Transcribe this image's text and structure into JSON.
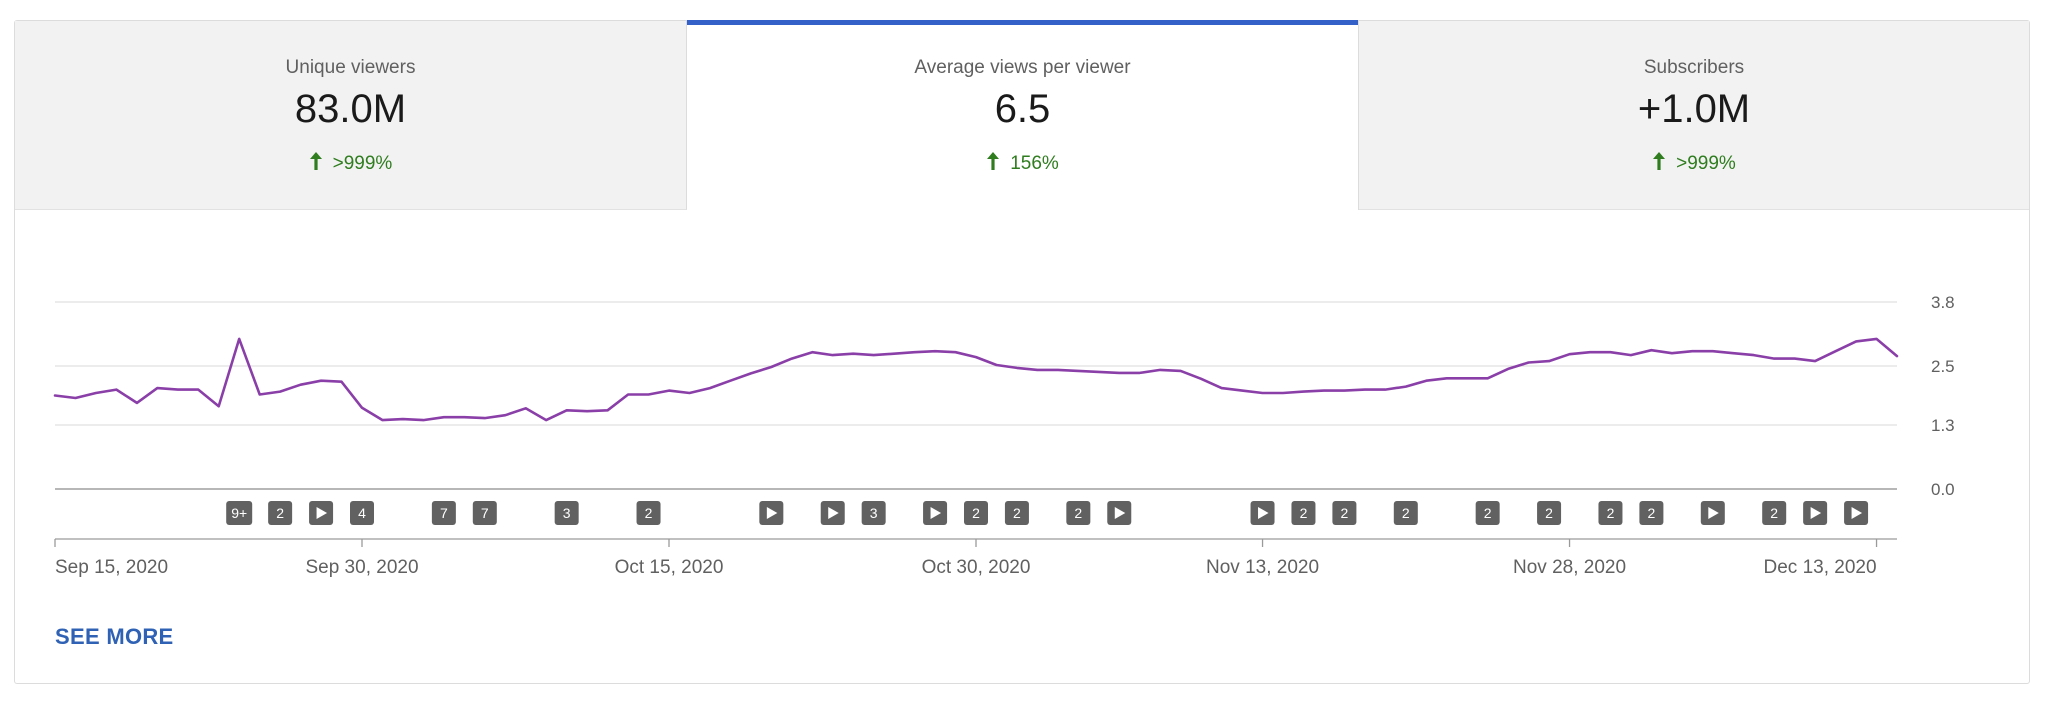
{
  "tabs": [
    {
      "label": "Unique viewers",
      "value": "83.0M",
      "delta": ">999%",
      "direction": "up",
      "active": false
    },
    {
      "label": "Average views per viewer",
      "value": "6.5",
      "delta": "156%",
      "direction": "up",
      "active": true
    },
    {
      "label": "Subscribers",
      "value": "+1.0M",
      "delta": ">999%",
      "direction": "up",
      "active": false
    }
  ],
  "see_more_label": "SEE MORE",
  "colors": {
    "line": "#8a3fa8",
    "accent": "#3461c8",
    "positive": "#2f7d1f",
    "marker": "#616161"
  },
  "chart_data": {
    "type": "line",
    "title": "Average views per viewer",
    "series": [
      {
        "name": "Average views per viewer",
        "x_start": "2020-09-15",
        "x_step_days": 1,
        "values": [
          1.9,
          1.85,
          1.95,
          2.02,
          1.75,
          2.05,
          2.02,
          2.02,
          1.68,
          3.05,
          1.92,
          1.98,
          2.12,
          2.2,
          2.18,
          1.65,
          1.4,
          1.42,
          1.4,
          1.46,
          1.46,
          1.44,
          1.5,
          1.64,
          1.4,
          1.6,
          1.58,
          1.6,
          1.92,
          1.92,
          2.0,
          1.95,
          2.05,
          2.2,
          2.35,
          2.48,
          2.65,
          2.78,
          2.72,
          2.75,
          2.72,
          2.75,
          2.78,
          2.8,
          2.78,
          2.68,
          2.52,
          2.46,
          2.42,
          2.42,
          2.4,
          2.38,
          2.36,
          2.36,
          2.42,
          2.4,
          2.24,
          2.05,
          2.0,
          1.95,
          1.95,
          1.98,
          2.0,
          2.0,
          2.02,
          2.02,
          2.08,
          2.2,
          2.25,
          2.25,
          2.25,
          2.44,
          2.57,
          2.6,
          2.74,
          2.78,
          2.78,
          2.72,
          2.82,
          2.76,
          2.8,
          2.8,
          2.76,
          2.72,
          2.65,
          2.65,
          2.6,
          2.8,
          3.0,
          3.05,
          2.7
        ]
      }
    ],
    "x_tick_labels": [
      "Sep 15, 2020",
      "Sep 30, 2020",
      "Oct 15, 2020",
      "Oct 30, 2020",
      "Nov 13, 2020",
      "Nov 28, 2020",
      "Dec 13, 2020"
    ],
    "x_tick_days": [
      0,
      15,
      30,
      45,
      59,
      74,
      89
    ],
    "y_ticks": [
      0,
      1.3,
      2.5,
      3.8
    ],
    "y_tick_labels": [
      "0.0",
      "1.3",
      "2.5",
      "3.8"
    ],
    "ylim": [
      0,
      3.8
    ],
    "y_axis_position": "right",
    "grid": true,
    "events": [
      {
        "day": 9,
        "label": "9+"
      },
      {
        "day": 11,
        "label": "2"
      },
      {
        "day": 13,
        "label": "▶"
      },
      {
        "day": 15,
        "label": "4"
      },
      {
        "day": 19,
        "label": "7"
      },
      {
        "day": 21,
        "label": "7"
      },
      {
        "day": 25,
        "label": "3"
      },
      {
        "day": 29,
        "label": "2"
      },
      {
        "day": 35,
        "label": "▶"
      },
      {
        "day": 38,
        "label": "▶"
      },
      {
        "day": 40,
        "label": "3"
      },
      {
        "day": 43,
        "label": "▶"
      },
      {
        "day": 45,
        "label": "2"
      },
      {
        "day": 47,
        "label": "2"
      },
      {
        "day": 50,
        "label": "2"
      },
      {
        "day": 52,
        "label": "▶"
      },
      {
        "day": 59,
        "label": "▶"
      },
      {
        "day": 61,
        "label": "2"
      },
      {
        "day": 63,
        "label": "2"
      },
      {
        "day": 66,
        "label": "2"
      },
      {
        "day": 70,
        "label": "2"
      },
      {
        "day": 73,
        "label": "2"
      },
      {
        "day": 76,
        "label": "2"
      },
      {
        "day": 78,
        "label": "2"
      },
      {
        "day": 81,
        "label": "▶"
      },
      {
        "day": 84,
        "label": "2"
      },
      {
        "day": 86,
        "label": "▶"
      },
      {
        "day": 88,
        "label": "▶"
      }
    ]
  }
}
